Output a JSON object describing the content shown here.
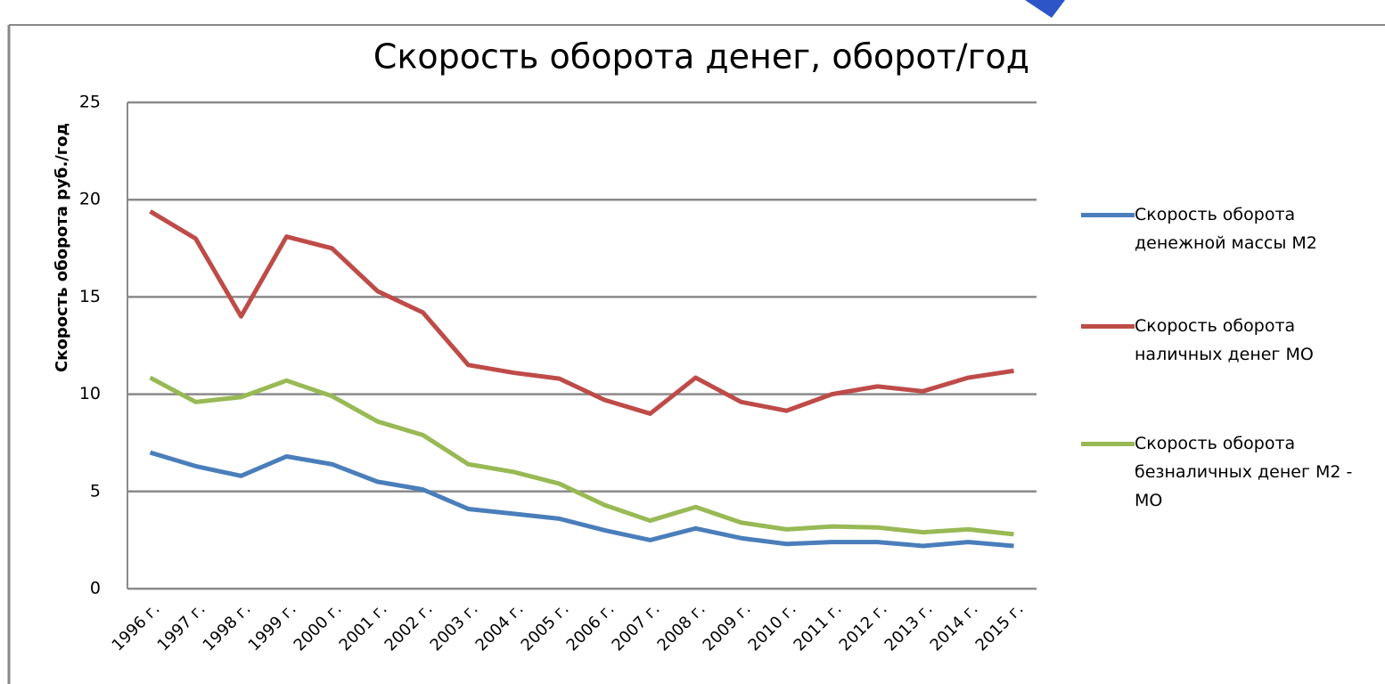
{
  "chart_data": {
    "type": "line",
    "title": "Скорость оборота денег,  оборот/год",
    "y_label": "Скорость оборота руб./год",
    "categories": [
      "1996 г.",
      "1997 г.",
      "1998 г.",
      "1999 г.",
      "2000 г.",
      "2001 г.",
      "2002 г.",
      "2003 г.",
      "2004 г.",
      "2005 г.",
      "2006 г.",
      "2007 г.",
      "2008 г.",
      "2009 г.",
      "2010 г.",
      "2011 г.",
      "2012 г.",
      "2013 г.",
      "2014 г.",
      "2015 г."
    ],
    "series": [
      {
        "name": "Скорость оборота денежной  массы  М2",
        "color": "#4a7ebb",
        "values": [
          7.0,
          6.3,
          5.8,
          6.8,
          6.4,
          5.5,
          5.1,
          4.1,
          3.85,
          3.6,
          3.0,
          2.5,
          3.1,
          2.6,
          2.3,
          2.4,
          2.4,
          2.2,
          2.4,
          2.2
        ]
      },
      {
        "name": "Скорость оборота наличных денег  МО",
        "color": "#be4b48",
        "values": [
          19.4,
          18.0,
          14.0,
          18.1,
          17.5,
          15.3,
          14.2,
          11.5,
          11.1,
          10.8,
          9.7,
          9.0,
          10.85,
          9.6,
          9.15,
          10.0,
          10.4,
          10.15,
          10.85,
          11.2
        ]
      },
      {
        "name": "Скорость оборота безналичных денег М2 - МО",
        "color": "#98b954",
        "values": [
          10.85,
          9.6,
          9.85,
          10.7,
          9.9,
          8.6,
          7.9,
          6.4,
          6.0,
          5.4,
          4.3,
          3.5,
          4.2,
          3.4,
          3.05,
          3.2,
          3.15,
          2.9,
          3.05,
          2.8
        ]
      }
    ],
    "ylim": [
      0,
      25
    ],
    "yticks": [
      0,
      5,
      10,
      15,
      20,
      25
    ],
    "grid": true,
    "legend": "right"
  }
}
